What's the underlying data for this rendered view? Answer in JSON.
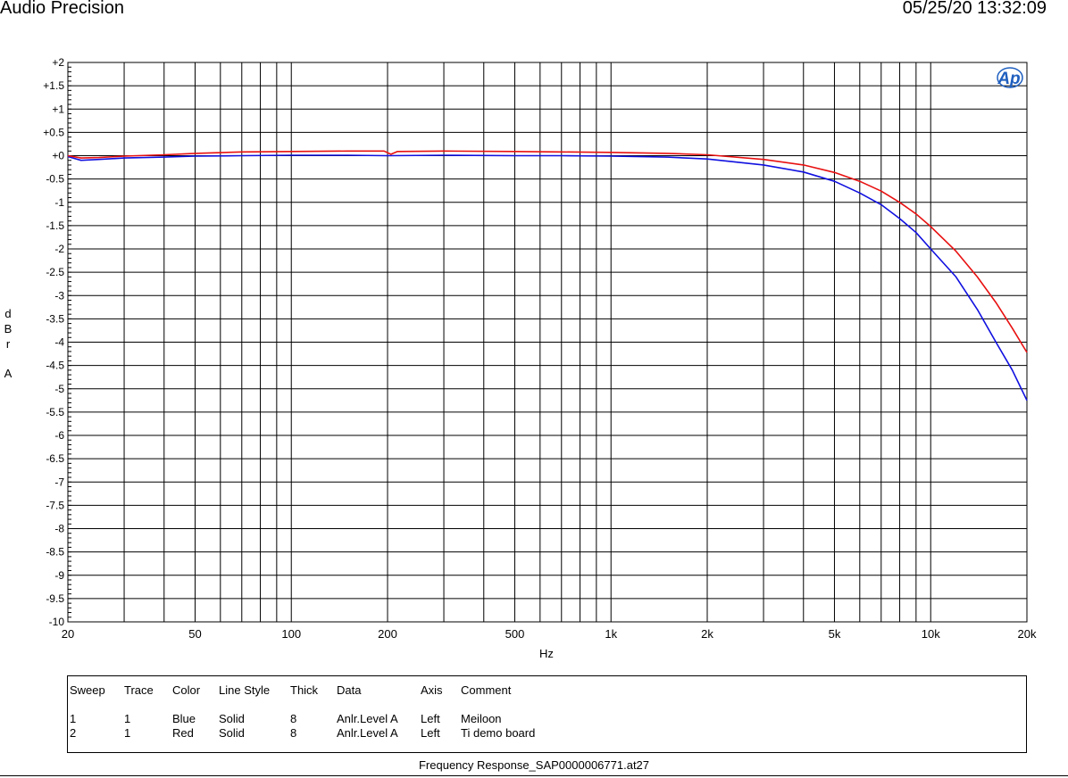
{
  "header": {
    "title": "Audio Precision",
    "datetime": "05/25/20 13:32:09"
  },
  "logo": {
    "text": "Ap",
    "color": "#1f5fbf"
  },
  "chart_data": {
    "type": "line",
    "x_scale": "log",
    "xlim": [
      20,
      20000
    ],
    "ylim": [
      -10,
      2
    ],
    "xlabel": "Hz",
    "ylabel": [
      "d",
      "B",
      "r",
      "",
      "A"
    ],
    "x_ticks": [
      {
        "v": 20,
        "label": "20"
      },
      {
        "v": 50,
        "label": "50"
      },
      {
        "v": 100,
        "label": "100"
      },
      {
        "v": 200,
        "label": "200"
      },
      {
        "v": 500,
        "label": "500"
      },
      {
        "v": 1000,
        "label": "1k"
      },
      {
        "v": 2000,
        "label": "2k"
      },
      {
        "v": 5000,
        "label": "5k"
      },
      {
        "v": 10000,
        "label": "10k"
      },
      {
        "v": 20000,
        "label": "20k"
      }
    ],
    "y_ticks": [
      "+2",
      "+1.5",
      "+1",
      "+0.5",
      "+0",
      "-0.5",
      "-1",
      "-1.5",
      "-2",
      "-2.5",
      "-3",
      "-3.5",
      "-4",
      "-4.5",
      "-5",
      "-5.5",
      "-6",
      "-6.5",
      "-7",
      "-7.5",
      "-8",
      "-8.5",
      "-9",
      "-9.5",
      "-10"
    ],
    "grid": true,
    "series": [
      {
        "name": "Meiloon",
        "color": "#1010e0",
        "points": [
          [
            20,
            -0.02
          ],
          [
            22,
            -0.1
          ],
          [
            25,
            -0.08
          ],
          [
            30,
            -0.05
          ],
          [
            40,
            -0.03
          ],
          [
            50,
            -0.01
          ],
          [
            70,
            0.0
          ],
          [
            100,
            0.01
          ],
          [
            150,
            0.01
          ],
          [
            200,
            0.0
          ],
          [
            300,
            0.01
          ],
          [
            500,
            0.0
          ],
          [
            700,
            0.0
          ],
          [
            1000,
            -0.01
          ],
          [
            1500,
            -0.03
          ],
          [
            2000,
            -0.07
          ],
          [
            3000,
            -0.2
          ],
          [
            4000,
            -0.35
          ],
          [
            5000,
            -0.55
          ],
          [
            6000,
            -0.8
          ],
          [
            7000,
            -1.05
          ],
          [
            8000,
            -1.35
          ],
          [
            9000,
            -1.65
          ],
          [
            10000,
            -2.0
          ],
          [
            12000,
            -2.6
          ],
          [
            14000,
            -3.3
          ],
          [
            16000,
            -4.0
          ],
          [
            18000,
            -4.6
          ],
          [
            20000,
            -5.25
          ]
        ]
      },
      {
        "name": "Ti demo board",
        "color": "#e81010",
        "points": [
          [
            20,
            0.0
          ],
          [
            22,
            -0.05
          ],
          [
            25,
            -0.04
          ],
          [
            30,
            -0.01
          ],
          [
            40,
            0.02
          ],
          [
            50,
            0.05
          ],
          [
            70,
            0.08
          ],
          [
            100,
            0.09
          ],
          [
            150,
            0.1
          ],
          [
            195,
            0.1
          ],
          [
            205,
            0.03
          ],
          [
            215,
            0.09
          ],
          [
            300,
            0.1
          ],
          [
            500,
            0.09
          ],
          [
            700,
            0.08
          ],
          [
            1000,
            0.07
          ],
          [
            1500,
            0.05
          ],
          [
            2000,
            0.02
          ],
          [
            3000,
            -0.08
          ],
          [
            4000,
            -0.2
          ],
          [
            5000,
            -0.36
          ],
          [
            6000,
            -0.55
          ],
          [
            7000,
            -0.76
          ],
          [
            8000,
            -1.0
          ],
          [
            9000,
            -1.25
          ],
          [
            10000,
            -1.52
          ],
          [
            12000,
            -2.05
          ],
          [
            14000,
            -2.6
          ],
          [
            16000,
            -3.15
          ],
          [
            18000,
            -3.7
          ],
          [
            20000,
            -4.22
          ]
        ]
      }
    ]
  },
  "legend": {
    "headers": [
      "Sweep",
      "Trace",
      "Color",
      "Line Style",
      "Thick",
      "Data",
      "Axis",
      "Comment"
    ],
    "rows": [
      [
        "1",
        "1",
        "Blue",
        "Solid",
        "8",
        "Anlr.Level A",
        "Left",
        "Meiloon"
      ],
      [
        "2",
        "1",
        "Red",
        "Solid",
        "8",
        "Anlr.Level A",
        "Left",
        "Ti demo board"
      ]
    ]
  },
  "footer": "Frequency Response_SAP0000006771.at27"
}
